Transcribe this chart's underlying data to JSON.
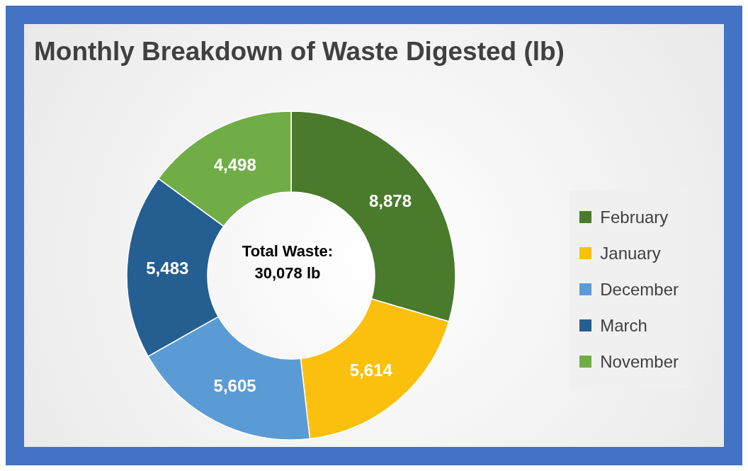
{
  "chart_data": {
    "type": "donut",
    "title": "Monthly Breakdown of Waste Digested (lb)",
    "categories": [
      "February",
      "January",
      "December",
      "March",
      "November"
    ],
    "values": [
      8878,
      5614,
      5605,
      5483,
      4498
    ],
    "colors": [
      "#4a7a2c",
      "#fbbf0e",
      "#5b9bd5",
      "#255e91",
      "#70ad47"
    ],
    "value_labels": [
      "8,878",
      "5,614",
      "5,605",
      "5,483",
      "4,498"
    ],
    "annotations": [
      "Total Waste:\n30,078 lb"
    ],
    "legend": "right"
  }
}
